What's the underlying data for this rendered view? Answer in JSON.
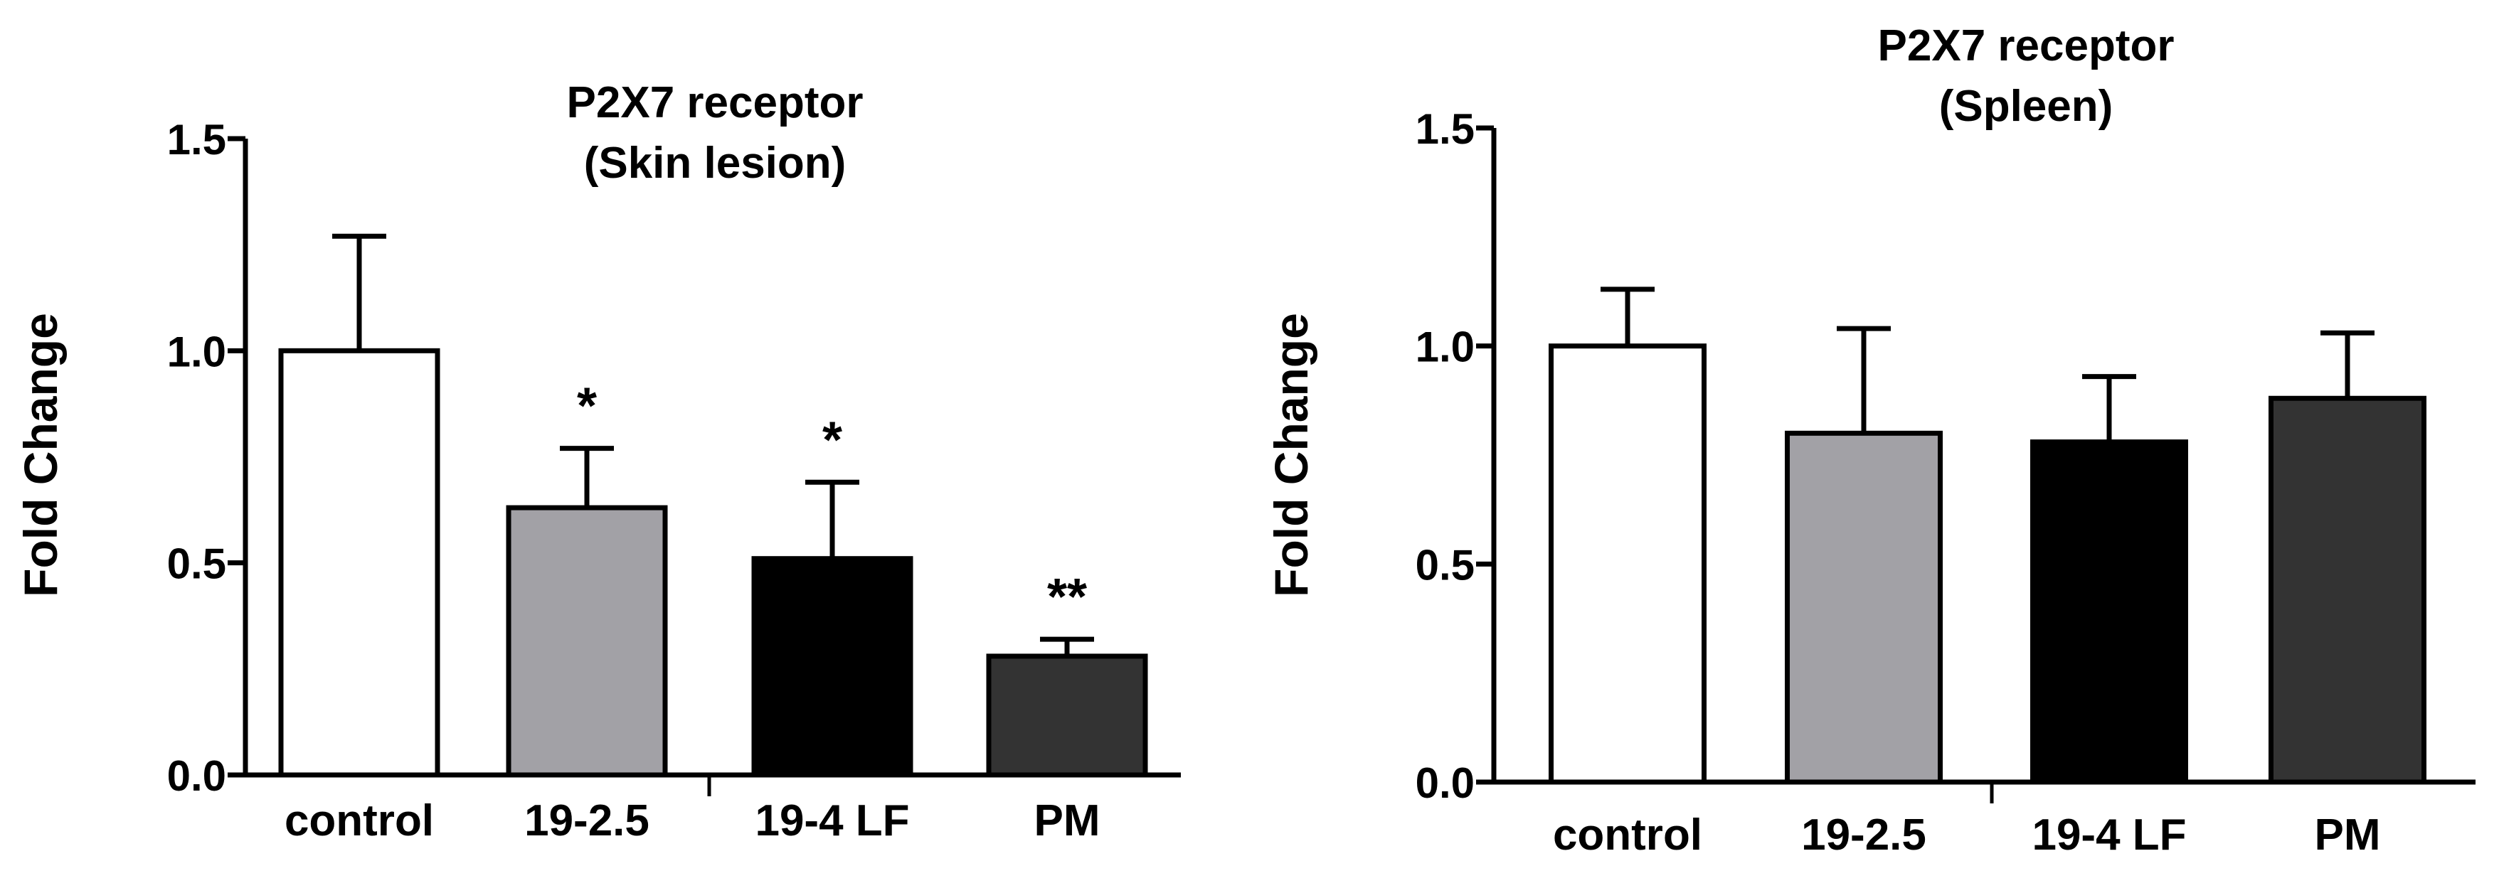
{
  "chart_data": [
    {
      "type": "bar",
      "title_lines": [
        "P2X7 receptor",
        "(Skin lesion)"
      ],
      "xlabel": "",
      "ylabel": "Fold Change",
      "ylim": [
        0,
        1.5
      ],
      "yticks": [
        "0.0",
        "0.5",
        "1.0",
        "1.5"
      ],
      "grid": false,
      "categories": [
        "control",
        "19-2.5",
        "19-4 LF",
        "PM"
      ],
      "values": [
        1.0,
        0.63,
        0.51,
        0.28
      ],
      "errors": [
        0.27,
        0.14,
        0.18,
        0.04
      ],
      "significance": [
        "",
        "*",
        "*",
        "**"
      ],
      "colors": [
        "#ffffff",
        "#a2a1a6",
        "#000000",
        "#333333"
      ]
    },
    {
      "type": "bar",
      "title_lines": [
        "P2X7 receptor",
        "(Spleen)"
      ],
      "xlabel": "",
      "ylabel": "Fold Change",
      "ylim": [
        0,
        1.5
      ],
      "yticks": [
        "0.0",
        "0.5",
        "1.0",
        "1.5"
      ],
      "grid": false,
      "categories": [
        "control",
        "19-2.5",
        "19-4 LF",
        "PM"
      ],
      "values": [
        1.0,
        0.8,
        0.78,
        0.88
      ],
      "errors": [
        0.13,
        0.24,
        0.15,
        0.15
      ],
      "significance": [
        "",
        "",
        "",
        ""
      ],
      "colors": [
        "#ffffff",
        "#a2a1a6",
        "#000000",
        "#333333"
      ]
    }
  ]
}
